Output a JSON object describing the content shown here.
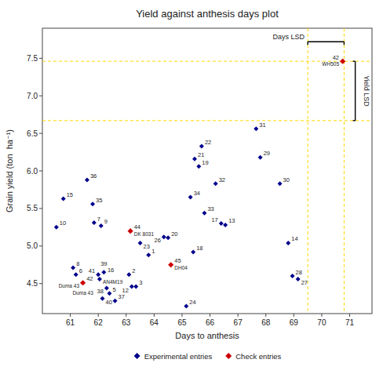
{
  "chart_data": {
    "type": "scatter",
    "title": "Yield against anthesis days plot",
    "x_label": "Days to anthesis",
    "y_label": "Grain yield (ton  ha⁻¹)",
    "xlim": [
      60.0,
      71.8
    ],
    "ylim": [
      4.1,
      7.9
    ],
    "xticks": [
      61,
      62,
      63,
      64,
      65,
      66,
      67,
      68,
      69,
      70,
      71
    ],
    "yticks": [
      4.5,
      {
        "value": 5.0,
        "label": "5.0"
      },
      5.5,
      {
        "value": 6.0,
        "label": "6.0"
      },
      6.5,
      {
        "value": 7.0,
        "label": "7.0"
      },
      7.5
    ],
    "legend": "lower center",
    "series": [
      {
        "name": "Experimental entries",
        "color": "#00008B",
        "marker": "diamond",
        "x": [
          60.5,
          60.75,
          61.1,
          61.2,
          61.6,
          61.8,
          61.85,
          62.1,
          62.0,
          62.05,
          62.2,
          62.3,
          62.4,
          62.15,
          62.6,
          63.1,
          63.2,
          63.35,
          63.5,
          63.8,
          64.5,
          64.35,
          65.15,
          65.3,
          65.4,
          65.45,
          65.6,
          65.7,
          65.8,
          66.2,
          66.4,
          66.55,
          67.65,
          67.8,
          68.5,
          68.8,
          68.95,
          69.15
        ],
        "values": [
          5.25,
          5.63,
          4.71,
          4.62,
          5.88,
          5.56,
          5.31,
          5.27,
          4.62,
          4.56,
          4.65,
          4.44,
          4.37,
          4.3,
          4.27,
          4.62,
          4.46,
          4.46,
          5.04,
          4.88,
          5.11,
          5.12,
          4.2,
          5.65,
          4.92,
          6.16,
          6.06,
          6.33,
          5.44,
          5.83,
          5.3,
          5.28,
          6.56,
          6.18,
          5.83,
          5.04,
          4.6,
          4.56
        ],
        "labels": [
          "10",
          "15",
          "8",
          "6",
          "36",
          "35",
          "7",
          "9",
          "41",
          "16",
          "39",
          "38",
          "5",
          "40",
          "37",
          "2",
          "12",
          "3",
          "23",
          "1",
          "20",
          "26",
          "24",
          "34",
          "18",
          "21",
          "19",
          "22",
          "33",
          "32",
          "17",
          "13",
          "31",
          "29",
          "30",
          "14",
          "28",
          "27"
        ]
      },
      {
        "name": "Check entries",
        "color": "#CC0000",
        "marker": "diamond",
        "x": [
          61.45,
          63.15,
          64.6,
          70.75
        ],
        "values": [
          4.51,
          5.2,
          4.75,
          7.46
        ],
        "labels": [
          "42",
          "44",
          "45",
          "42"
        ],
        "names": [
          "Duma 43",
          "DK 8031",
          "DH04",
          "WH505"
        ]
      }
    ],
    "reference_lines": [
      {
        "axis": "y",
        "value": 7.46,
        "color": "#FFD700",
        "line_style": "dashed"
      },
      {
        "axis": "y",
        "value": 6.67,
        "color": "#FFD700",
        "line_style": "dashed"
      },
      {
        "axis": "x",
        "value": 69.5,
        "color": "#FFD700",
        "line_style": "dashed"
      },
      {
        "axis": "x",
        "value": 70.8,
        "color": "#FFD700",
        "line_style": "dashed"
      }
    ],
    "days_lsd": {
      "label": "Days LSD",
      "x": [
        69.5,
        70.8
      ],
      "y": 7.72
    },
    "yield_lsd": {
      "label": "Yield LSD",
      "x": 71.2,
      "y": [
        7.46,
        6.67
      ]
    },
    "annotations": [
      {
        "text": "AN4M19",
        "x": 62.05,
        "y": 4.56
      },
      {
        "text": "Duma 43",
        "x": 61.45,
        "y": 4.51
      }
    ]
  }
}
